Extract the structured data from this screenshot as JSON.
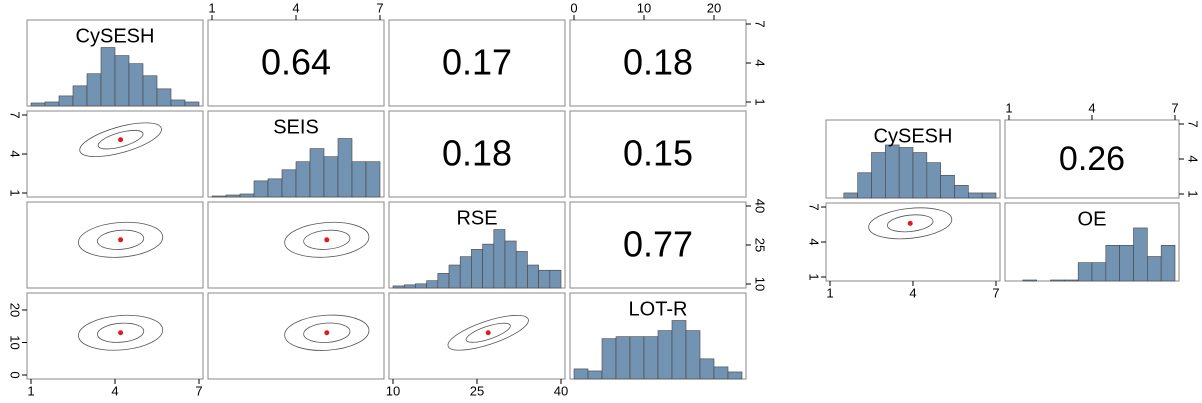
{
  "chart_data": [
    {
      "type": "pairs",
      "variables": [
        {
          "name": "CySESH",
          "lim": [
            1,
            7
          ],
          "ticks": [
            1,
            4,
            7
          ],
          "bins": [
            1,
            1.5,
            2,
            2.5,
            3,
            3.5,
            4,
            4.5,
            5,
            5.5,
            6,
            6.5,
            7
          ],
          "counts": [
            3,
            4,
            10,
            20,
            32,
            58,
            50,
            42,
            30,
            17,
            6,
            4
          ],
          "mean": 4.2
        },
        {
          "name": "SEIS",
          "lim": [
            1,
            7
          ],
          "ticks": [
            1,
            4,
            7
          ],
          "bins": [
            1,
            1.5,
            2,
            2.5,
            3,
            3.5,
            4,
            4.5,
            5,
            5.5,
            6,
            6.5,
            7
          ],
          "counts": [
            1,
            2,
            3,
            16,
            18,
            27,
            35,
            48,
            40,
            58,
            35,
            35
          ],
          "mean": 5.1
        },
        {
          "name": "RSE",
          "lim": [
            10,
            40
          ],
          "ticks": [
            10,
            25,
            40
          ],
          "bins": [
            10,
            12,
            14,
            16,
            18,
            20,
            22,
            24,
            26,
            28,
            30,
            32,
            34,
            36,
            38,
            40
          ],
          "counts": [
            2,
            3,
            4,
            7,
            14,
            22,
            30,
            37,
            42,
            56,
            45,
            35,
            22,
            17,
            17
          ],
          "mean": 27
        },
        {
          "name": "LOT-R",
          "lim": [
            0,
            24
          ],
          "ticks": [
            0,
            10,
            20
          ],
          "bins": [
            0,
            2,
            4,
            6,
            8,
            10,
            12,
            14,
            16,
            18,
            20,
            22,
            24
          ],
          "counts": [
            10,
            8,
            40,
            42,
            42,
            42,
            48,
            58,
            48,
            20,
            12,
            7
          ],
          "mean": 13
        }
      ],
      "correlations": [
        0.64,
        0.17,
        0.18,
        0.18,
        0.15,
        0.77
      ],
      "hist_color": "#7393b3",
      "mean_color": "#e31a1c"
    },
    {
      "type": "pairs",
      "variables": [
        {
          "name": "CySESH",
          "lim": [
            1,
            7
          ],
          "ticks": [
            1,
            4,
            7
          ],
          "bins": [
            1,
            1.5,
            2,
            2.5,
            3,
            3.5,
            4,
            4.5,
            5,
            5.5,
            6,
            6.5,
            7
          ],
          "counts": [
            0,
            4,
            20,
            36,
            42,
            40,
            36,
            28,
            18,
            10,
            4,
            4
          ],
          "mean": 3.9
        },
        {
          "name": "OE",
          "lim": [
            1,
            7
          ],
          "ticks": [
            1,
            4,
            7
          ],
          "bins": [
            1,
            1.5,
            2,
            2.5,
            3,
            3.5,
            4,
            4.5,
            5,
            5.5,
            6,
            6.5,
            7
          ],
          "counts": [
            0,
            1,
            0,
            1,
            1,
            18,
            18,
            35,
            35,
            52,
            24,
            35
          ],
          "mean": 5.6
        }
      ],
      "correlations": [
        0.26
      ],
      "hist_color": "#7393b3",
      "mean_color": "#e31a1c"
    }
  ]
}
